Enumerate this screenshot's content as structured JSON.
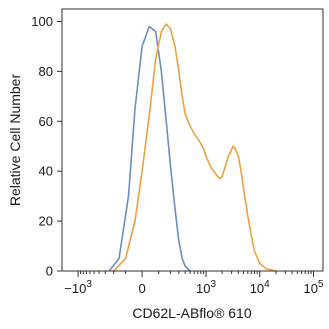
{
  "chart_data": {
    "type": "line",
    "xlabel": "CD62L-ABflo® 610",
    "ylabel": "Relative Cell Number",
    "xscale": "biexponential",
    "xlim": [
      -2000,
      150000
    ],
    "ylim": [
      0,
      105
    ],
    "y_ticks": [
      0,
      20,
      40,
      60,
      80,
      100
    ],
    "x_ticks": [
      {
        "value": -1000,
        "label": "−10",
        "exp": "3"
      },
      {
        "value": 0,
        "label": "0",
        "exp": ""
      },
      {
        "value": 1000,
        "label": "10",
        "exp": "3"
      },
      {
        "value": 10000,
        "label": "10",
        "exp": "4"
      },
      {
        "value": 100000,
        "label": "10",
        "exp": "5"
      }
    ],
    "series": [
      {
        "color": "#6b8fbd",
        "x": [
          -250,
          -150,
          -80,
          -40,
          0,
          40,
          80,
          120,
          160,
          200,
          250,
          300,
          350,
          400,
          500
        ],
        "y": [
          0,
          5,
          30,
          65,
          90,
          98,
          96,
          80,
          60,
          42,
          25,
          12,
          5,
          2,
          0
        ]
      },
      {
        "color": "#f0a040",
        "x": [
          -200,
          -100,
          -40,
          0,
          40,
          80,
          120,
          160,
          200,
          250,
          300,
          350,
          400,
          500,
          600,
          700,
          800,
          900,
          1000,
          1200,
          1500,
          1800,
          2000,
          2300,
          2600,
          2900,
          3200,
          3500,
          4000,
          4500,
          5000,
          6000,
          7000,
          8000,
          10000,
          13000,
          16000,
          20000
        ],
        "y": [
          0,
          5,
          20,
          40,
          62,
          85,
          96,
          99,
          97,
          90,
          80,
          70,
          63,
          58,
          55,
          53,
          51,
          49,
          46,
          42,
          39,
          37,
          38,
          42,
          46,
          48,
          50,
          49,
          46,
          40,
          33,
          22,
          14,
          8,
          3,
          1,
          0.5,
          0
        ]
      }
    ]
  }
}
